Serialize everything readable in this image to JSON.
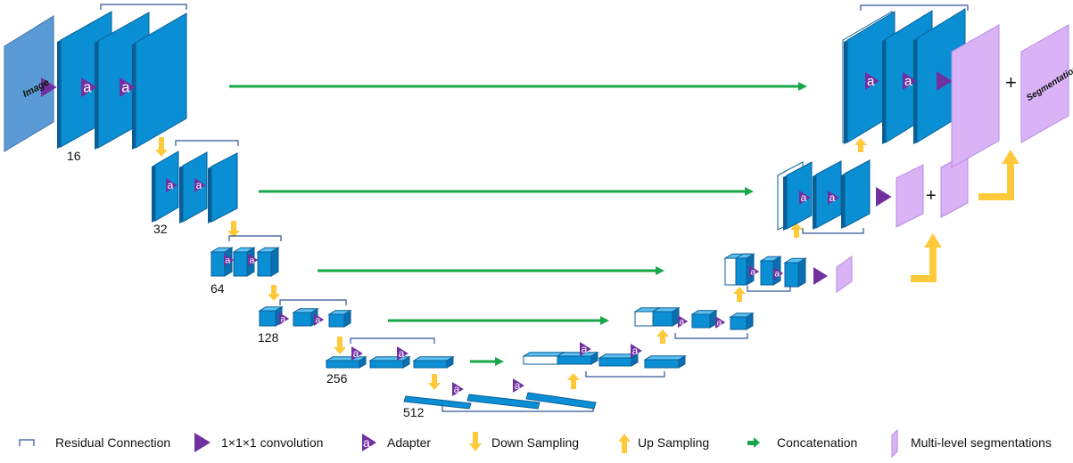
{
  "diagram": {
    "input_label": "Image",
    "output_label": "Segmentation",
    "adapter_glyph": "a",
    "plus_sign": "+",
    "channel_labels": [
      "16",
      "32",
      "64",
      "128",
      "256",
      "512"
    ],
    "colors": {
      "feature_map": "#0b8fd4",
      "feature_edge": "#0a5e96",
      "input_image": "#5b9bd5",
      "adapter": "#7030a0",
      "sampling_arrow": "#ffc93c",
      "concat_arrow": "#1aa64a",
      "segmentation": "#d9b3f5",
      "residual": "#2f5597"
    }
  },
  "legend": [
    {
      "icon": "residual-bracket",
      "label": "Residual Connection"
    },
    {
      "icon": "purple-triangle",
      "label": "1×1×1 convolution"
    },
    {
      "icon": "adapter-triangle",
      "label": "Adapter"
    },
    {
      "icon": "down-arrow",
      "label": "Down Sampling"
    },
    {
      "icon": "up-arrow",
      "label": "Up Sampling"
    },
    {
      "icon": "green-arrow",
      "label": "Concatenation"
    },
    {
      "icon": "purple-slab",
      "label": "Multi-level segmentations"
    }
  ]
}
